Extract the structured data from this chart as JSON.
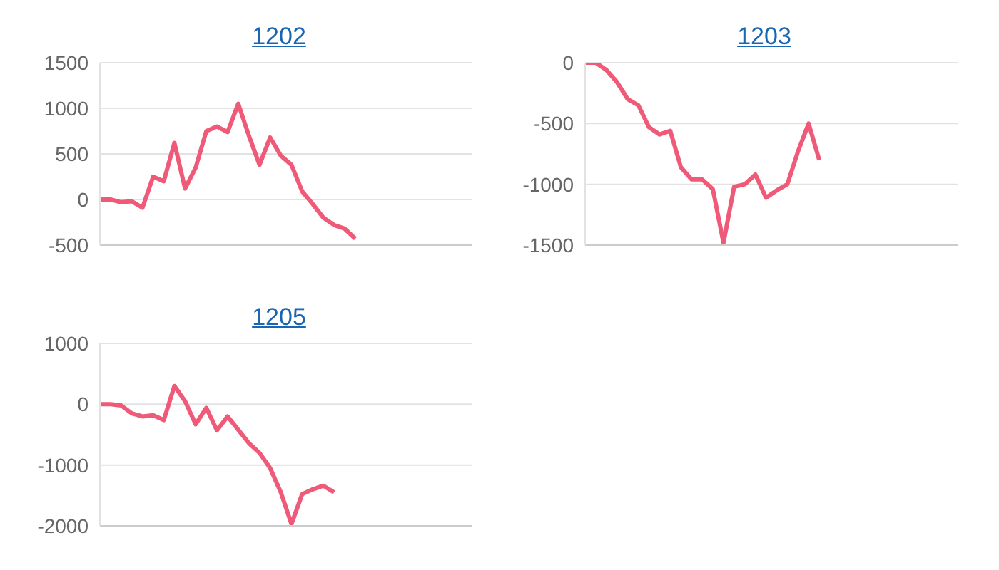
{
  "chart_data": [
    {
      "type": "line",
      "title": "1202",
      "categories": [
        null,
        null,
        null,
        null,
        null,
        null,
        null,
        null,
        null,
        null,
        null,
        null,
        null,
        null,
        null,
        null,
        null,
        null,
        null,
        null,
        null,
        null,
        null,
        null,
        null,
        null,
        null,
        null,
        null,
        null,
        null,
        null,
        null,
        null,
        null,
        null
      ],
      "series": [
        {
          "color": "#ef5a78",
          "values": [
            0,
            0,
            -30,
            -20,
            -90,
            250,
            200,
            620,
            120,
            350,
            750,
            800,
            740,
            1050,
            700,
            380,
            680,
            480,
            380,
            90,
            -50,
            -200,
            -280,
            -320,
            -430,
            null,
            null,
            null,
            null,
            null,
            null,
            null,
            null,
            null,
            null,
            null
          ]
        }
      ],
      "ylim": [
        -500,
        1500
      ],
      "yticks": [
        -500,
        0,
        500,
        1000,
        1500
      ],
      "grid": "y",
      "tick_labels": "y",
      "marker": "none",
      "legend": false
    },
    {
      "type": "line",
      "title": "1203",
      "categories": [
        null,
        null,
        null,
        null,
        null,
        null,
        null,
        null,
        null,
        null,
        null,
        null,
        null,
        null,
        null,
        null,
        null,
        null,
        null,
        null,
        null,
        null,
        null,
        null,
        null,
        null,
        null,
        null,
        null,
        null,
        null,
        null,
        null,
        null,
        null,
        null
      ],
      "series": [
        {
          "color": "#ef5a78",
          "values": [
            0,
            0,
            -60,
            -160,
            -300,
            -350,
            -530,
            -590,
            -560,
            -860,
            -960,
            -960,
            -1040,
            -1480,
            -1020,
            -1000,
            -920,
            -1110,
            -1050,
            -1000,
            -730,
            -500,
            -800,
            null,
            null,
            null,
            null,
            null,
            null,
            null,
            null,
            null,
            null,
            null,
            null,
            null
          ]
        }
      ],
      "ylim": [
        -1500,
        0
      ],
      "yticks": [
        -1500,
        -1000,
        -500,
        0
      ],
      "grid": "y",
      "tick_labels": "y",
      "marker": "none",
      "legend": false
    },
    {
      "type": "line",
      "title": "1205",
      "categories": [
        null,
        null,
        null,
        null,
        null,
        null,
        null,
        null,
        null,
        null,
        null,
        null,
        null,
        null,
        null,
        null,
        null,
        null,
        null,
        null,
        null,
        null,
        null,
        null,
        null,
        null,
        null,
        null,
        null,
        null,
        null,
        null,
        null,
        null,
        null,
        null
      ],
      "series": [
        {
          "color": "#ef5a78",
          "values": [
            0,
            0,
            -20,
            -150,
            -200,
            -180,
            -260,
            300,
            50,
            -330,
            -60,
            -430,
            -200,
            -420,
            -640,
            -800,
            -1050,
            -1450,
            -1970,
            -1480,
            -1400,
            -1340,
            -1450,
            null,
            null,
            null,
            null,
            null,
            null,
            null,
            null,
            null,
            null,
            null,
            null,
            null
          ]
        }
      ],
      "ylim": [
        -2000,
        1000
      ],
      "yticks": [
        -2000,
        -1000,
        0,
        1000
      ],
      "grid": "y",
      "tick_labels": "y",
      "marker": "none",
      "legend": false
    }
  ]
}
